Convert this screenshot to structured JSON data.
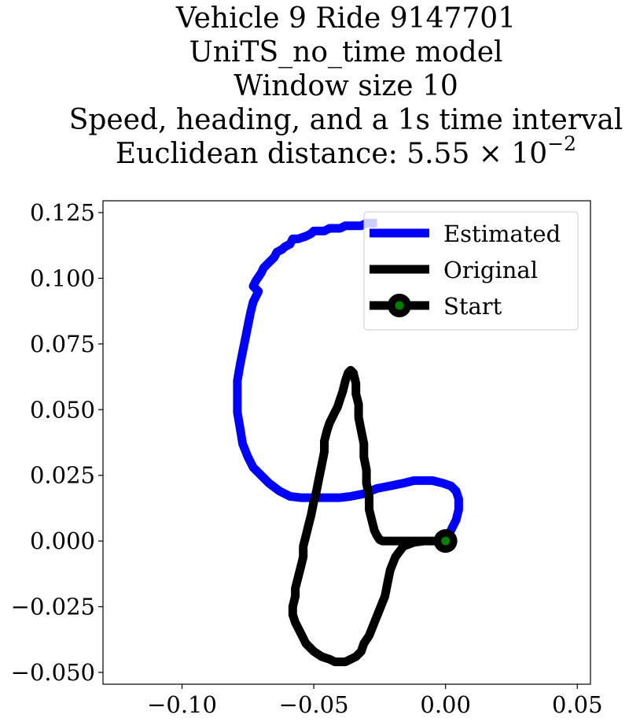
{
  "chart_data": {
    "type": "line",
    "title_lines": [
      "Vehicle 9 Ride 9147701",
      "UniTS_no_time model",
      "Window size 10",
      "Speed, heading, and a 1s time interval"
    ],
    "title_metric_prefix": "Euclidean distance: 5.55 × 10",
    "title_metric_exponent": "−2",
    "xlim": [
      -0.13,
      0.055
    ],
    "ylim": [
      -0.0545,
      0.1295
    ],
    "xticks": [
      -0.1,
      -0.05,
      0.0,
      0.05
    ],
    "xtick_labels": [
      "−0.10",
      "−0.05",
      "0.00",
      "0.05"
    ],
    "yticks": [
      -0.05,
      -0.025,
      0.0,
      0.025,
      0.05,
      0.075,
      0.1,
      0.125
    ],
    "ytick_labels": [
      "−0.050",
      "−0.025",
      "0.000",
      "0.025",
      "0.050",
      "0.075",
      "0.100",
      "0.125"
    ],
    "grid": false,
    "legend_placement": "top-right",
    "legend": [
      {
        "label": "Estimated",
        "color": "#0000ff",
        "marker": "none"
      },
      {
        "label": "Original",
        "color": "#000000",
        "marker": "none"
      },
      {
        "label": "Start",
        "color": "#000000",
        "marker": "circle",
        "marker_fill": "#008000"
      }
    ],
    "series": [
      {
        "name": "Estimated",
        "color": "#0000ff",
        "x": [
          0.0,
          0.002,
          0.004,
          0.005,
          0.005,
          0.004,
          0.002,
          -0.001,
          -0.005,
          -0.008,
          -0.012,
          -0.016,
          -0.021,
          -0.026,
          -0.031,
          -0.036,
          -0.04,
          -0.045,
          -0.05,
          -0.055,
          -0.059,
          -0.063,
          -0.067,
          -0.07,
          -0.073,
          -0.075,
          -0.077,
          -0.078,
          -0.079,
          -0.079,
          -0.079,
          -0.078,
          -0.077,
          -0.076,
          -0.075,
          -0.074,
          -0.073,
          -0.072,
          -0.071,
          -0.073,
          -0.072,
          -0.07,
          -0.069,
          -0.067,
          -0.065,
          -0.064,
          -0.062,
          -0.061,
          -0.059,
          -0.058,
          -0.056,
          -0.053,
          -0.051,
          -0.05,
          -0.048,
          -0.046,
          -0.044,
          -0.042,
          -0.04,
          -0.038,
          -0.036,
          -0.034,
          -0.032,
          -0.03,
          -0.028,
          -0.026
        ],
        "y": [
          0.0,
          0.004,
          0.008,
          0.012,
          0.016,
          0.019,
          0.021,
          0.022,
          0.023,
          0.023,
          0.023,
          0.022,
          0.021,
          0.02,
          0.018,
          0.017,
          0.0165,
          0.0165,
          0.0165,
          0.0165,
          0.017,
          0.019,
          0.022,
          0.025,
          0.028,
          0.032,
          0.037,
          0.043,
          0.049,
          0.055,
          0.061,
          0.067,
          0.072,
          0.077,
          0.082,
          0.087,
          0.091,
          0.093,
          0.095,
          0.097,
          0.099,
          0.102,
          0.104,
          0.106,
          0.108,
          0.11,
          0.111,
          0.112,
          0.113,
          0.115,
          0.115,
          0.116,
          0.117,
          0.118,
          0.118,
          0.118,
          0.119,
          0.119,
          0.119,
          0.12,
          0.12,
          0.12,
          0.12,
          0.121,
          0.121,
          0.121
        ]
      },
      {
        "name": "Original",
        "color": "#000000",
        "x": [
          0.0,
          -0.004,
          -0.008,
          -0.012,
          -0.016,
          -0.019,
          -0.021,
          -0.022,
          -0.023,
          -0.025,
          -0.027,
          -0.029,
          -0.031,
          -0.032,
          -0.034,
          -0.036,
          -0.038,
          -0.04,
          -0.042,
          -0.044,
          -0.047,
          -0.05,
          -0.053,
          -0.055,
          -0.057,
          -0.058,
          -0.058,
          -0.057,
          -0.057,
          -0.056,
          -0.055,
          -0.054,
          -0.054,
          -0.053,
          -0.052,
          -0.051,
          -0.05,
          -0.049,
          -0.048,
          -0.047,
          -0.046,
          -0.046,
          -0.045,
          -0.044,
          -0.043,
          -0.042,
          -0.041,
          -0.04,
          -0.039,
          -0.038,
          -0.037,
          -0.036,
          -0.035,
          -0.034,
          -0.034,
          -0.033,
          -0.033,
          -0.032,
          -0.031,
          -0.031,
          -0.03,
          -0.03,
          -0.029,
          -0.029,
          -0.028,
          -0.027,
          -0.026,
          -0.025,
          -0.024,
          -0.021,
          -0.018,
          -0.014,
          -0.01,
          -0.006,
          -0.003,
          0.0
        ],
        "y": [
          0.0,
          0.0,
          0.0,
          -0.0005,
          -0.002,
          -0.006,
          -0.011,
          -0.016,
          -0.021,
          -0.026,
          -0.031,
          -0.036,
          -0.039,
          -0.042,
          -0.044,
          -0.045,
          -0.046,
          -0.046,
          -0.046,
          -0.045,
          -0.044,
          -0.042,
          -0.039,
          -0.035,
          -0.031,
          -0.028,
          -0.025,
          -0.021,
          -0.018,
          -0.014,
          -0.01,
          -0.006,
          -0.002,
          0.002,
          0.006,
          0.01,
          0.015,
          0.019,
          0.024,
          0.029,
          0.034,
          0.038,
          0.042,
          0.045,
          0.047,
          0.049,
          0.051,
          0.054,
          0.057,
          0.061,
          0.064,
          0.065,
          0.064,
          0.06,
          0.056,
          0.052,
          0.047,
          0.042,
          0.037,
          0.032,
          0.027,
          0.022,
          0.017,
          0.012,
          0.008,
          0.004,
          0.002,
          0.0005,
          0.0,
          0.0,
          0.0,
          0.0,
          0.0,
          0.0,
          0.0,
          0.0
        ]
      }
    ],
    "start_point": {
      "x": 0.0,
      "y": 0.0
    }
  }
}
